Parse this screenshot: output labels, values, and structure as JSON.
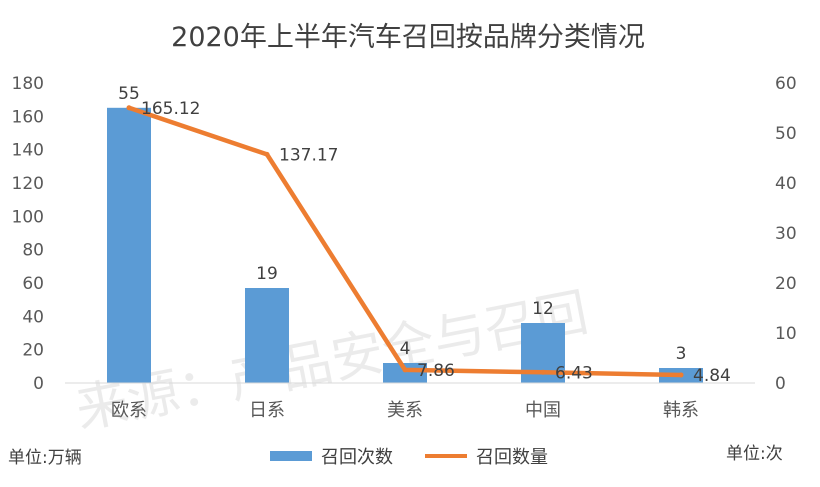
{
  "chart_data": {
    "type": "bar+line",
    "title": "2020年上半年汽车召回按品牌分类情况",
    "categories": [
      "欧系",
      "日系",
      "美系",
      "中国",
      "韩系"
    ],
    "series": [
      {
        "name": "召回次数",
        "kind": "bar",
        "axis": "left",
        "values": [
          165.12,
          57,
          12,
          36,
          9
        ],
        "labels": [
          "55",
          "19",
          "4",
          "12",
          "3"
        ],
        "color": "#5B9BD5"
      },
      {
        "name": "召回数量",
        "kind": "line",
        "axis": "right",
        "values": [
          55.04,
          45.72,
          2.62,
          2.14,
          1.61
        ],
        "labels": [
          "165.12",
          "137.17",
          "7.86",
          "6.43",
          "4.84"
        ],
        "color": "#ED7D31"
      }
    ],
    "y_left": {
      "min": 0,
      "max": 180,
      "ticks": [
        "0",
        "20",
        "40",
        "60",
        "80",
        "100",
        "120",
        "140",
        "160",
        "180"
      ]
    },
    "y_right": {
      "min": 0,
      "max": 60,
      "ticks": [
        "0",
        "10",
        "20",
        "30",
        "40",
        "50",
        "60"
      ]
    },
    "grid": false,
    "legend_position": "bottom"
  },
  "units": {
    "left": "单位:万辆",
    "right": "单位:次"
  },
  "watermark": "来源：产品安全与召回"
}
